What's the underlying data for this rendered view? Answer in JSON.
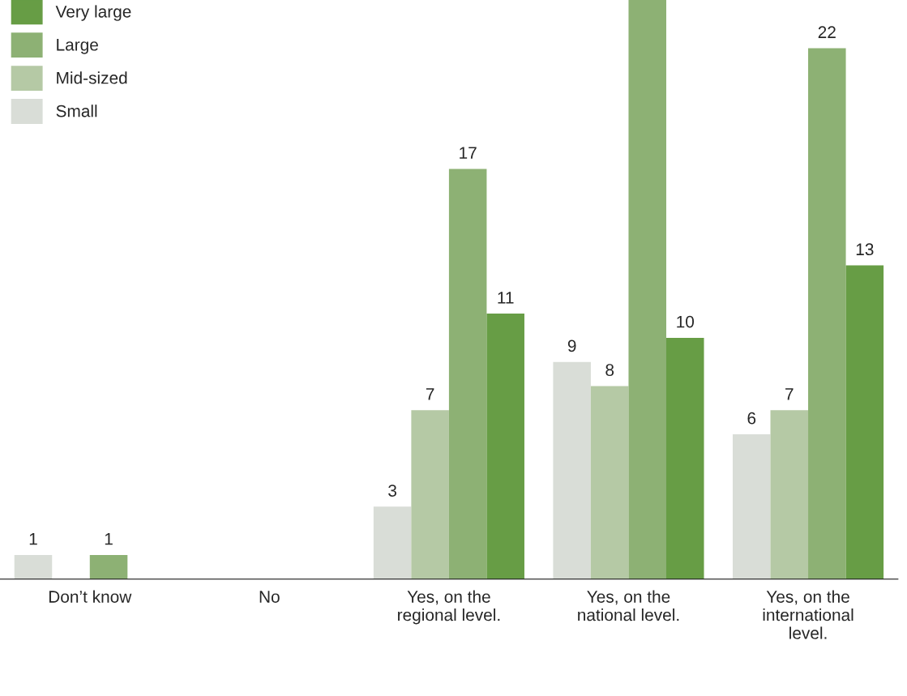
{
  "chart_data": {
    "type": "bar",
    "categories": [
      "Don’t know",
      "No",
      "Yes, on the\nregional level.",
      "Yes, on the\nnational level.",
      "Yes, on the\ninternational\nlevel."
    ],
    "series": [
      {
        "name": "Small",
        "color": "#d9ddd7",
        "values": [
          1,
          null,
          3,
          9,
          6
        ],
        "value_labels": [
          "1",
          null,
          "3",
          "9",
          "6"
        ]
      },
      {
        "name": "Mid-sized",
        "color": "#b5c9a5",
        "values": [
          null,
          null,
          7,
          8,
          7
        ],
        "value_labels": [
          null,
          null,
          "7",
          "8",
          "7"
        ]
      },
      {
        "name": "Large",
        "color": "#8db174",
        "values": [
          1,
          null,
          17,
          24,
          22
        ],
        "value_labels": [
          "1",
          null,
          "17",
          null,
          "22"
        ]
      },
      {
        "name": "Very large",
        "color": "#679d45",
        "values": [
          null,
          null,
          11,
          10,
          13
        ],
        "value_labels": [
          null,
          null,
          "11",
          "10",
          "13"
        ]
      }
    ],
    "ylim": [
      0,
      24
    ],
    "legend": "top left",
    "grid": false
  }
}
